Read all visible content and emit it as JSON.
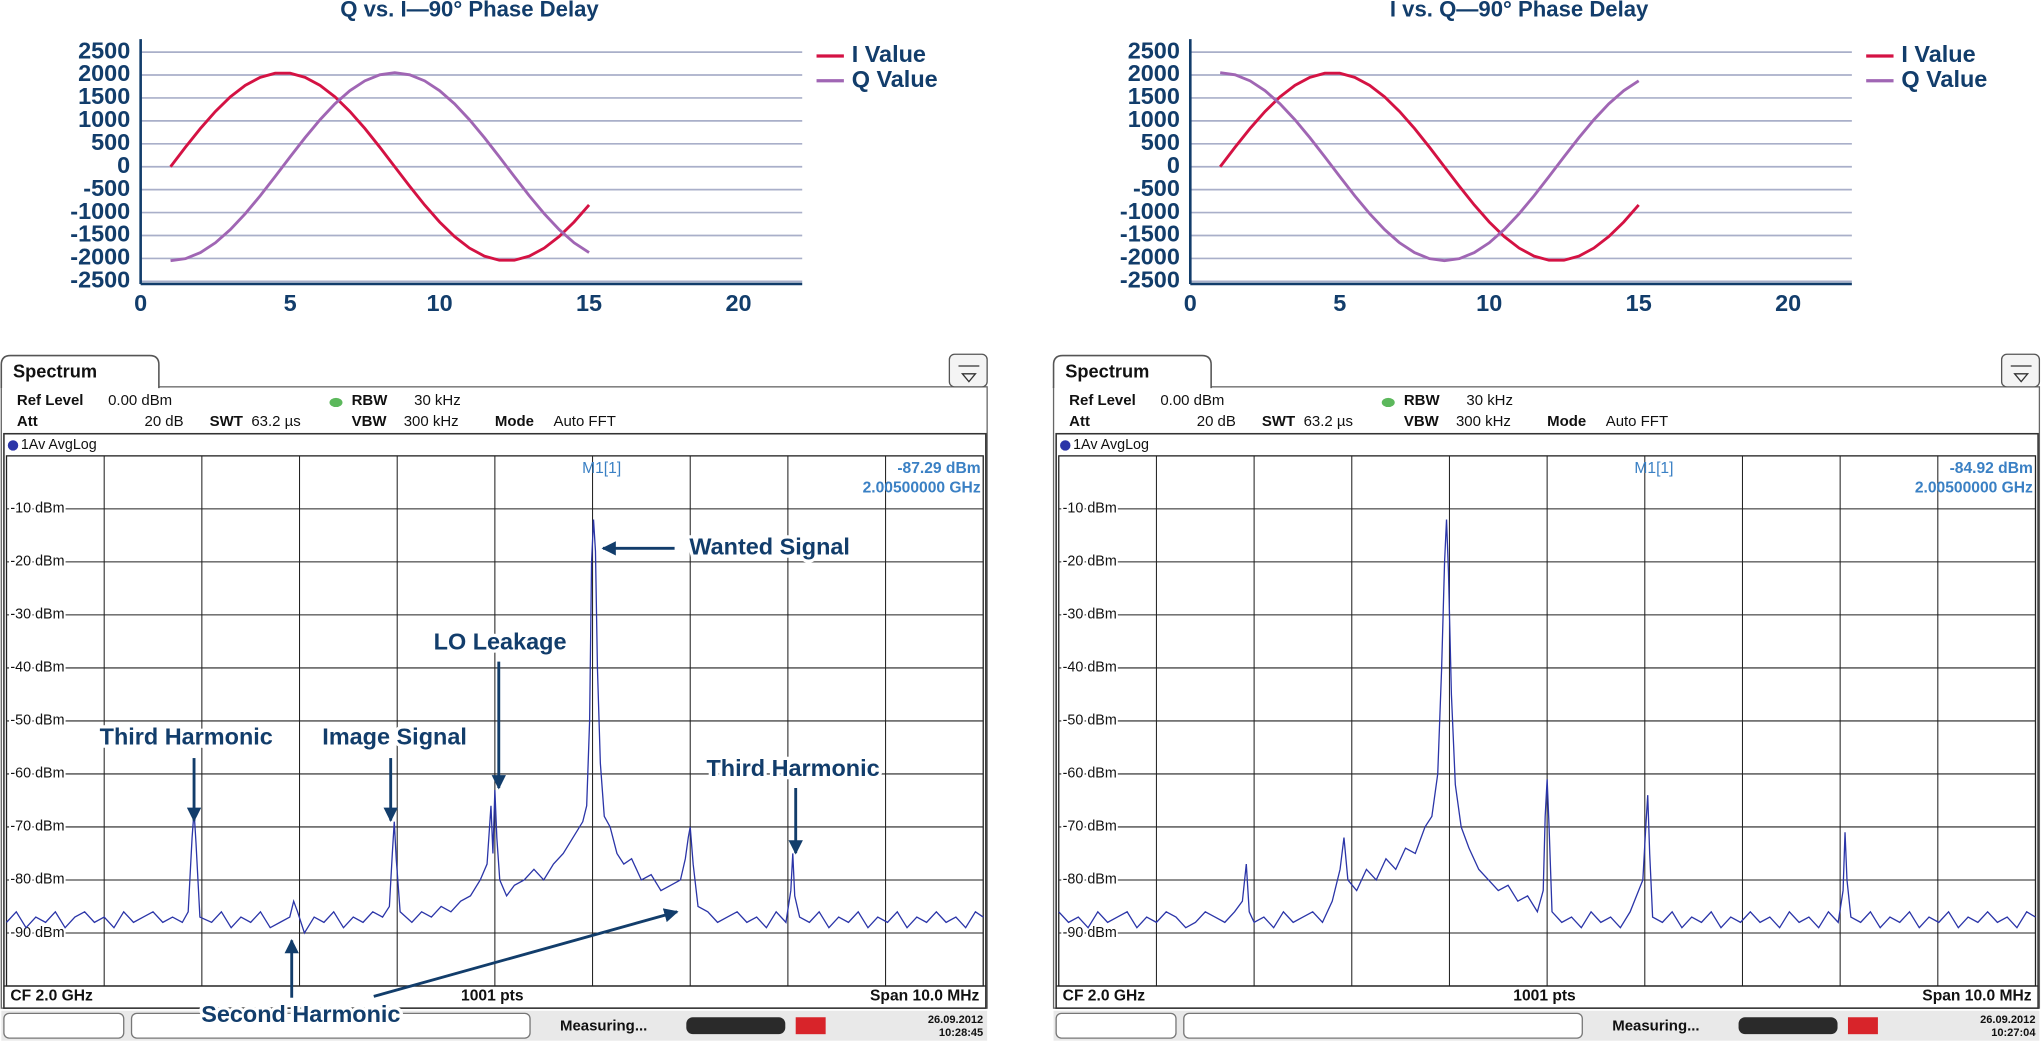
{
  "chart_data": [
    {
      "type": "line",
      "title": "Q vs. I—90° Phase Delay",
      "x": [
        1,
        1.5,
        2,
        2.5,
        3,
        3.5,
        4,
        4.5,
        5,
        5.5,
        6,
        6.5,
        7,
        7.5,
        8,
        8.5,
        9,
        9.5,
        10,
        10.5,
        11,
        11.5,
        12,
        12.5,
        13,
        13.5,
        14,
        14.5,
        15
      ],
      "series": [
        {
          "name": "I Value",
          "color": "#d41243",
          "values": [
            0,
            426,
            834,
            1205,
            1523,
            1775,
            1950,
            2039,
            2039,
            1950,
            1775,
            1523,
            1205,
            834,
            426,
            0,
            -426,
            -834,
            -1205,
            -1523,
            -1775,
            -1950,
            -2039,
            -2039,
            -1950,
            -1775,
            -1523,
            -1205,
            -834
          ]
        },
        {
          "name": "Q Value",
          "color": "#a066b4",
          "values": [
            -2050,
            -2005,
            -1873,
            -1659,
            -1372,
            -1025,
            -633,
            -214,
            214,
            633,
            1025,
            1372,
            1659,
            1873,
            2005,
            2050,
            2005,
            1873,
            1659,
            1372,
            1025,
            633,
            214,
            -214,
            -633,
            -1025,
            -1372,
            -1659,
            -1873
          ]
        }
      ],
      "xlim": [
        0,
        22
      ],
      "xticks": [
        0,
        5,
        10,
        15,
        20
      ],
      "ylim": [
        -2500,
        2500
      ],
      "yticks": [
        2500,
        2000,
        1500,
        1000,
        500,
        0,
        -500,
        -1000,
        -1500,
        -2000,
        -2500
      ],
      "grid": true,
      "legend": "upper right"
    },
    {
      "type": "line",
      "title": "I vs. Q—90° Phase Delay",
      "x": [
        1,
        1.5,
        2,
        2.5,
        3,
        3.5,
        4,
        4.5,
        5,
        5.5,
        6,
        6.5,
        7,
        7.5,
        8,
        8.5,
        9,
        9.5,
        10,
        10.5,
        11,
        11.5,
        12,
        12.5,
        13,
        13.5,
        14,
        14.5,
        15
      ],
      "series": [
        {
          "name": "I Value",
          "color": "#d41243",
          "values": [
            0,
            426,
            834,
            1205,
            1523,
            1775,
            1950,
            2039,
            2039,
            1950,
            1775,
            1523,
            1205,
            834,
            426,
            0,
            -426,
            -834,
            -1205,
            -1523,
            -1775,
            -1950,
            -2039,
            -2039,
            -1950,
            -1775,
            -1523,
            -1205,
            -834
          ]
        },
        {
          "name": "Q Value",
          "color": "#a066b4",
          "values": [
            2050,
            2005,
            1873,
            1659,
            1372,
            1025,
            633,
            214,
            -214,
            -633,
            -1025,
            -1372,
            -1659,
            -1873,
            -2005,
            -2050,
            -2005,
            -1873,
            -1659,
            -1372,
            -1025,
            -633,
            -214,
            214,
            633,
            1025,
            1372,
            1659,
            1873
          ]
        }
      ],
      "xlim": [
        0,
        22
      ],
      "xticks": [
        0,
        5,
        10,
        15,
        20
      ],
      "ylim": [
        -2500,
        2500
      ],
      "yticks": [
        2500,
        2000,
        1500,
        1000,
        500,
        0,
        -500,
        -1000,
        -1500,
        -2000,
        -2500
      ],
      "grid": true,
      "legend": "upper right"
    },
    {
      "type": "spectrum",
      "tab": "Spectrum",
      "ref_level_label": "Ref Level",
      "ref_level": "0.00 dBm",
      "att_label": "Att",
      "att": "20 dB",
      "swt_label": "SWT",
      "swt": "63.2 µs",
      "rbw_label": "RBW",
      "rbw": "30 kHz",
      "vbw_label": "VBW",
      "vbw": "300 kHz",
      "mode_label": "Mode",
      "mode": "Auto FFT",
      "trace_label": "1Av AvgLog",
      "marker_name": "M1[1]",
      "marker_level": "-87.29 dBm",
      "marker_freq": "2.00500000 GHz",
      "footer_left": "CF 2.0 GHz",
      "footer_center": "1001 pts",
      "footer_right": "Span 10.0 MHz",
      "status": "Measuring...",
      "date": "26.09.2012",
      "time": "10:28:45",
      "color": "#2b35a8",
      "x": [
        0,
        10,
        20,
        30,
        40,
        50,
        60,
        70,
        80,
        90,
        100,
        110,
        120,
        130,
        140,
        150,
        160,
        170,
        180,
        186,
        190,
        192,
        194,
        198,
        210,
        220,
        230,
        240,
        250,
        260,
        270,
        280,
        290,
        294,
        298,
        305,
        315,
        325,
        335,
        345,
        355,
        365,
        375,
        385,
        392,
        395,
        397,
        399,
        403,
        415,
        425,
        435,
        445,
        455,
        465,
        475,
        485,
        492,
        496,
        498,
        500,
        502,
        505,
        512,
        520,
        530,
        540,
        550,
        560,
        570,
        580,
        590,
        594,
        597,
        599,
        601,
        603,
        605,
        608,
        612,
        618,
        625,
        632,
        640,
        650,
        660,
        670,
        680,
        690,
        695,
        698,
        700,
        703,
        708,
        718,
        728,
        738,
        748,
        758,
        768,
        778,
        788,
        798,
        803,
        805,
        807,
        812,
        822,
        832,
        842,
        852,
        862,
        872,
        882,
        892,
        902,
        912,
        922,
        932,
        942,
        952,
        962,
        972,
        982,
        992,
        1000
      ],
      "values": [
        -88,
        -86,
        -89,
        -87,
        -88,
        -86,
        -89,
        -87,
        -86,
        -88,
        -87,
        -89,
        -86,
        -88,
        -87,
        -86,
        -88,
        -87,
        -88,
        -86,
        -72,
        -67,
        -73,
        -87,
        -88,
        -86,
        -89,
        -87,
        -88,
        -86,
        -89,
        -88,
        -87,
        -84,
        -86,
        -90,
        -87,
        -88,
        -86,
        -89,
        -87,
        -88,
        -86,
        -87,
        -85,
        -75,
        -69,
        -76,
        -86,
        -88,
        -86,
        -87,
        -85,
        -86,
        -84,
        -83,
        -80,
        -77,
        -66,
        -75,
        -63,
        -72,
        -80,
        -83,
        -81,
        -80,
        -78,
        -80,
        -77,
        -75,
        -72,
        -69,
        -66,
        -50,
        -20,
        -12,
        -18,
        -40,
        -58,
        -68,
        -70,
        -75,
        -77,
        -76,
        -80,
        -79,
        -82,
        -81,
        -80,
        -76,
        -72,
        -70,
        -77,
        -85,
        -86,
        -88,
        -87,
        -86,
        -88,
        -87,
        -89,
        -86,
        -88,
        -82,
        -75,
        -83,
        -87,
        -88,
        -86,
        -89,
        -87,
        -88,
        -86,
        -89,
        -87,
        -88,
        -86,
        -89,
        -87,
        -88,
        -86,
        -88,
        -87,
        -89,
        -86,
        -87
      ],
      "xlim": [
        0,
        1000
      ],
      "xticks": [
        100,
        200,
        300,
        400,
        500,
        600,
        700,
        800,
        900
      ],
      "ylim": [
        -100,
        0
      ],
      "yticks": [
        {
          "value": -10,
          "label": "-10 dBm"
        },
        {
          "value": -20,
          "label": "-20 dBm"
        },
        {
          "value": -30,
          "label": "-30 dBm"
        },
        {
          "value": -40,
          "label": "-40 dBm"
        },
        {
          "value": -50,
          "label": "-50 dBm"
        },
        {
          "value": -60,
          "label": "-60 dBm"
        },
        {
          "value": -70,
          "label": "-70 dBm"
        },
        {
          "value": -80,
          "label": "-80 dBm"
        },
        {
          "value": -90,
          "label": "-90 dBm"
        }
      ],
      "grid": true,
      "annotations": [
        "Wanted Signal",
        "LO Leakage",
        "Third Harmonic",
        "Image Signal",
        "Third Harmonic",
        "Second Harmonic"
      ]
    },
    {
      "type": "spectrum",
      "tab": "Spectrum",
      "ref_level_label": "Ref Level",
      "ref_level": "0.00 dBm",
      "att_label": "Att",
      "att": "20 dB",
      "swt_label": "SWT",
      "swt": "63.2 µs",
      "rbw_label": "RBW",
      "rbw": "30 kHz",
      "vbw_label": "VBW",
      "vbw": "300 kHz",
      "mode_label": "Mode",
      "mode": "Auto FFT",
      "trace_label": "1Av AvgLog",
      "marker_name": "M1[1]",
      "marker_level": "-84.92 dBm",
      "marker_freq": "2.00500000 GHz",
      "footer_left": "CF 2.0 GHz",
      "footer_center": "1001 pts",
      "footer_right": "Span 10.0 MHz",
      "status": "Measuring...",
      "date": "26.09.2012",
      "time": "10:27:04",
      "color": "#2b35a8",
      "x": [
        0,
        10,
        20,
        30,
        40,
        50,
        60,
        70,
        80,
        90,
        100,
        110,
        120,
        130,
        140,
        150,
        160,
        170,
        180,
        188,
        192,
        195,
        200,
        210,
        220,
        230,
        240,
        250,
        260,
        270,
        280,
        288,
        292,
        296,
        305,
        315,
        325,
        335,
        345,
        355,
        365,
        375,
        382,
        388,
        392,
        395,
        397,
        399,
        402,
        406,
        412,
        420,
        430,
        440,
        450,
        460,
        470,
        480,
        490,
        496,
        498,
        500,
        502,
        505,
        515,
        525,
        535,
        545,
        555,
        565,
        575,
        585,
        598,
        601,
        603,
        605,
        608,
        618,
        628,
        638,
        648,
        658,
        668,
        678,
        688,
        698,
        708,
        718,
        728,
        738,
        748,
        758,
        768,
        778,
        788,
        798,
        803,
        805,
        807,
        811,
        821,
        831,
        841,
        851,
        861,
        871,
        881,
        891,
        901,
        911,
        921,
        931,
        941,
        951,
        961,
        971,
        981,
        991,
        1000
      ],
      "values": [
        -86,
        -88,
        -87,
        -89,
        -86,
        -88,
        -87,
        -86,
        -89,
        -87,
        -88,
        -86,
        -87,
        -89,
        -88,
        -86,
        -87,
        -88,
        -86,
        -84,
        -77,
        -86,
        -88,
        -87,
        -89,
        -86,
        -88,
        -87,
        -86,
        -88,
        -84,
        -78,
        -72,
        -80,
        -82,
        -78,
        -80,
        -76,
        -78,
        -74,
        -75,
        -70,
        -68,
        -60,
        -40,
        -20,
        -12,
        -22,
        -45,
        -62,
        -70,
        -74,
        -78,
        -80,
        -82,
        -81,
        -84,
        -83,
        -86,
        -82,
        -68,
        -61,
        -70,
        -86,
        -88,
        -87,
        -89,
        -86,
        -88,
        -87,
        -89,
        -86,
        -80,
        -70,
        -64,
        -75,
        -87,
        -88,
        -86,
        -89,
        -87,
        -88,
        -86,
        -89,
        -87,
        -88,
        -86,
        -88,
        -87,
        -89,
        -86,
        -88,
        -87,
        -89,
        -86,
        -88,
        -82,
        -71,
        -80,
        -87,
        -88,
        -86,
        -89,
        -87,
        -88,
        -86,
        -89,
        -87,
        -88,
        -86,
        -89,
        -87,
        -88,
        -86,
        -88,
        -87,
        -89,
        -86,
        -87
      ],
      "xlim": [
        0,
        1000
      ],
      "xticks": [
        100,
        200,
        300,
        400,
        500,
        600,
        700,
        800,
        900
      ],
      "ylim": [
        -100,
        0
      ],
      "yticks": [
        {
          "value": -10,
          "label": "-10 dBm"
        },
        {
          "value": -20,
          "label": "-20 dBm"
        },
        {
          "value": -30,
          "label": "-30 dBm"
        },
        {
          "value": -40,
          "label": "-40 dBm"
        },
        {
          "value": -50,
          "label": "-50 dBm"
        },
        {
          "value": -60,
          "label": "-60 dBm"
        },
        {
          "value": -70,
          "label": "-70 dBm"
        },
        {
          "value": -80,
          "label": "-80 dBm"
        },
        {
          "value": -90,
          "label": "-90 dBm"
        }
      ],
      "grid": true
    }
  ]
}
